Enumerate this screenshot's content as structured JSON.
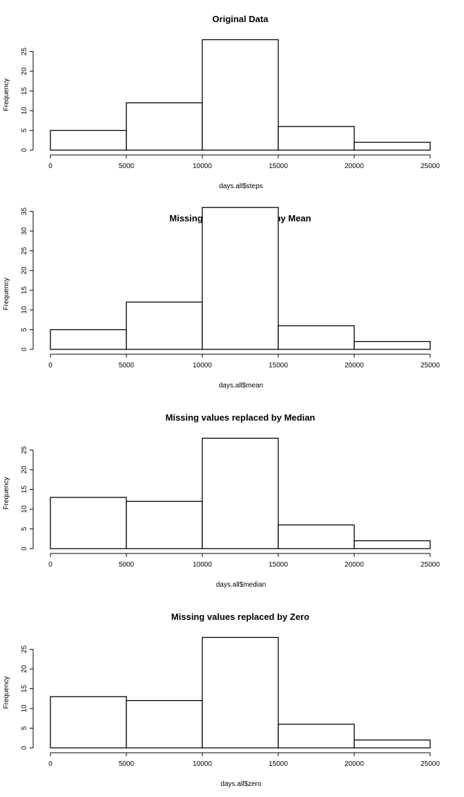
{
  "chart_data": [
    {
      "type": "bar",
      "title": "Original Data",
      "xlabel": "days.all$steps",
      "ylabel": "Frequency",
      "bins": [
        [
          0,
          5000
        ],
        [
          5000,
          10000
        ],
        [
          10000,
          15000
        ],
        [
          15000,
          20000
        ],
        [
          20000,
          25000
        ]
      ],
      "values": [
        5,
        12,
        28,
        6,
        2
      ],
      "xlim": [
        0,
        25000
      ],
      "xticks": [
        0,
        5000,
        10000,
        15000,
        20000,
        25000
      ],
      "yticks": [
        0,
        5,
        10,
        15,
        20,
        25
      ],
      "grid": false
    },
    {
      "type": "bar",
      "title": "Missing values replaced by Mean",
      "xlabel": "days.all$mean",
      "ylabel": "Frequency",
      "bins": [
        [
          0,
          5000
        ],
        [
          5000,
          10000
        ],
        [
          10000,
          15000
        ],
        [
          15000,
          20000
        ],
        [
          20000,
          25000
        ]
      ],
      "values": [
        5,
        12,
        36,
        6,
        2
      ],
      "xlim": [
        0,
        25000
      ],
      "xticks": [
        0,
        5000,
        10000,
        15000,
        20000,
        25000
      ],
      "yticks": [
        0,
        5,
        10,
        15,
        20,
        25,
        30,
        35
      ],
      "grid": false
    },
    {
      "type": "bar",
      "title": "Missing values replaced by Median",
      "xlabel": "days.all$median",
      "ylabel": "Frequency",
      "bins": [
        [
          0,
          5000
        ],
        [
          5000,
          10000
        ],
        [
          10000,
          15000
        ],
        [
          15000,
          20000
        ],
        [
          20000,
          25000
        ]
      ],
      "values": [
        13,
        12,
        28,
        6,
        2
      ],
      "xlim": [
        0,
        25000
      ],
      "xticks": [
        0,
        5000,
        10000,
        15000,
        20000,
        25000
      ],
      "yticks": [
        0,
        5,
        10,
        15,
        20,
        25
      ],
      "grid": false
    },
    {
      "type": "bar",
      "title": "Missing values replaced by Zero",
      "xlabel": "days.all$zero",
      "ylabel": "Frequency",
      "bins": [
        [
          0,
          5000
        ],
        [
          5000,
          10000
        ],
        [
          10000,
          15000
        ],
        [
          15000,
          20000
        ],
        [
          20000,
          25000
        ]
      ],
      "values": [
        13,
        12,
        28,
        6,
        2
      ],
      "xlim": [
        0,
        25000
      ],
      "xticks": [
        0,
        5000,
        10000,
        15000,
        20000,
        25000
      ],
      "yticks": [
        0,
        5,
        10,
        15,
        20,
        25
      ],
      "grid": false
    }
  ]
}
